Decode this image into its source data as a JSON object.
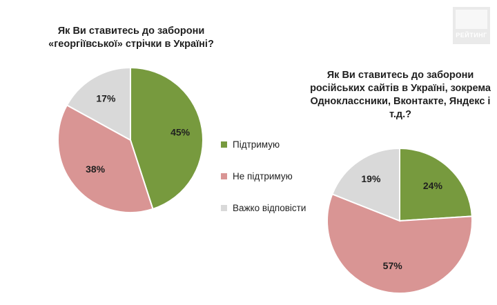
{
  "logo_text": "РЕЙТИНГ",
  "legend": [
    {
      "label": "Підтримую",
      "color": "#779a3e"
    },
    {
      "label": "Не підтримую",
      "color": "#d99594"
    },
    {
      "label": "Важко відповісти",
      "color": "#d9d9d9"
    }
  ],
  "chart_data": [
    {
      "type": "pie",
      "title": "Як Ви ставитесь до заборони\n«георгіївської» стрічки в Україні?",
      "categories": [
        "Підтримую",
        "Не підтримую",
        "Важко відповісти"
      ],
      "values": [
        45,
        38,
        17
      ],
      "labels": [
        "45%",
        "38%",
        "17%"
      ],
      "colors": [
        "#779a3e",
        "#d99594",
        "#d9d9d9"
      ]
    },
    {
      "type": "pie",
      "title": "Як Ви ставитесь до заборони\nросійських сайтів в Україні, зокрема\nОдноклассники, Вконтакте, Яндекс і\nт.д.?",
      "categories": [
        "Підтримую",
        "Не підтримую",
        "Важко відповісти"
      ],
      "values": [
        24,
        57,
        19
      ],
      "labels": [
        "24%",
        "57%",
        "19%"
      ],
      "colors": [
        "#779a3e",
        "#d99594",
        "#d9d9d9"
      ]
    }
  ]
}
